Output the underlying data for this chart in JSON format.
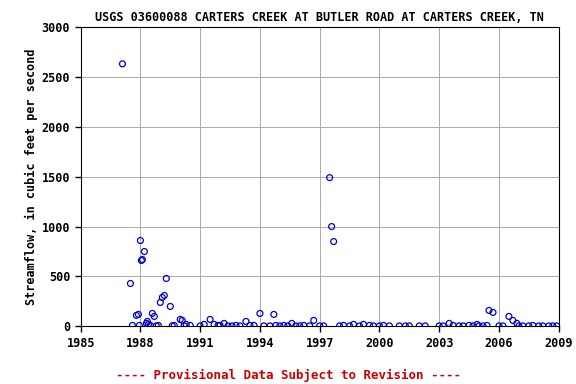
{
  "title": "USGS 03600088 CARTERS CREEK AT BUTLER ROAD AT CARTERS CREEK, TN",
  "ylabel": "Streamflow, in cubic feet per second",
  "xlim": [
    1985,
    2009
  ],
  "ylim": [
    0,
    3000
  ],
  "xticks": [
    1985,
    1988,
    1991,
    1994,
    1997,
    2000,
    2003,
    2006,
    2009
  ],
  "yticks": [
    0,
    500,
    1000,
    1500,
    2000,
    2500,
    3000
  ],
  "footnote": "---- Provisional Data Subject to Revision ----",
  "marker_color": "#0000CC",
  "background_color": "#ffffff",
  "grid_color": "#aaaaaa",
  "title_fontsize": 8.5,
  "axis_label_fontsize": 8.5,
  "tick_fontsize": 8.5,
  "footnote_fontsize": 9,
  "footnote_color": "#cc0000",
  "data_x": [
    1987.1,
    1987.5,
    1987.6,
    1987.8,
    1987.9,
    1987.95,
    1988.0,
    1988.05,
    1988.1,
    1988.2,
    1988.3,
    1988.35,
    1988.4,
    1988.5,
    1988.6,
    1988.7,
    1988.8,
    1988.9,
    1989.0,
    1989.1,
    1989.2,
    1989.3,
    1989.5,
    1989.6,
    1989.7,
    1990.0,
    1990.1,
    1990.2,
    1990.3,
    1990.5,
    1991.0,
    1991.2,
    1991.5,
    1991.7,
    1991.9,
    1992.0,
    1992.2,
    1992.4,
    1992.6,
    1992.8,
    1993.0,
    1993.3,
    1993.5,
    1993.7,
    1994.0,
    1994.2,
    1994.5,
    1994.7,
    1994.8,
    1995.0,
    1995.2,
    1995.4,
    1995.6,
    1995.8,
    1996.0,
    1996.2,
    1996.5,
    1996.7,
    1997.0,
    1997.2,
    1997.5,
    1997.6,
    1997.7,
    1998.0,
    1998.2,
    1998.5,
    1998.7,
    1999.0,
    1999.2,
    1999.5,
    1999.7,
    2000.0,
    2000.2,
    2000.5,
    2001.0,
    2001.3,
    2001.5,
    2002.0,
    2002.3,
    2003.0,
    2003.2,
    2003.5,
    2003.7,
    2004.0,
    2004.2,
    2004.5,
    2004.7,
    2004.9,
    2005.0,
    2005.2,
    2005.4,
    2005.5,
    2005.7,
    2006.0,
    2006.2,
    2006.5,
    2006.7,
    2006.9,
    2007.0,
    2007.2,
    2007.5,
    2007.7,
    2008.0,
    2008.2,
    2008.5,
    2008.7,
    2008.9
  ],
  "data_y": [
    2630,
    430,
    10,
    110,
    120,
    10,
    860,
    660,
    670,
    750,
    30,
    50,
    20,
    10,
    130,
    100,
    5,
    10,
    240,
    290,
    310,
    480,
    200,
    5,
    10,
    70,
    60,
    5,
    20,
    10,
    5,
    20,
    70,
    20,
    10,
    10,
    30,
    5,
    5,
    10,
    5,
    50,
    10,
    10,
    130,
    5,
    5,
    120,
    10,
    5,
    10,
    5,
    30,
    5,
    5,
    10,
    5,
    60,
    5,
    5,
    1490,
    1000,
    850,
    5,
    10,
    5,
    20,
    5,
    20,
    10,
    5,
    5,
    10,
    5,
    5,
    5,
    5,
    5,
    5,
    5,
    5,
    30,
    10,
    5,
    5,
    10,
    5,
    20,
    5,
    5,
    10,
    160,
    140,
    5,
    5,
    100,
    60,
    30,
    5,
    5,
    5,
    10,
    5,
    5,
    5,
    5,
    5
  ]
}
